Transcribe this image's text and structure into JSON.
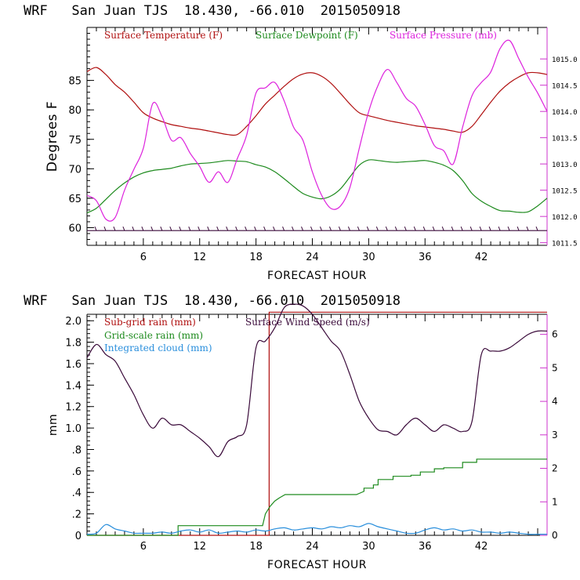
{
  "chart_data": [
    {
      "type": "line",
      "title": "WRF   San Juan TJS  18.430, -66.010  2015050918",
      "xlabel": "FORECAST HOUR",
      "ylabel": "Degrees F",
      "xlim": [
        0,
        49
      ],
      "x_ticks": [
        6,
        12,
        18,
        24,
        30,
        36,
        42
      ],
      "ylim": [
        57,
        94
      ],
      "y_ticks": [
        60,
        65,
        70,
        75,
        80,
        85
      ],
      "y2lim": [
        1011.45,
        1015.6
      ],
      "y2_ticks": [
        "1011.5",
        "1012.0",
        "1012.5",
        "1013.0",
        "1013.5",
        "1014.0",
        "1014.5",
        "1015.0"
      ],
      "grid": false,
      "legend": "top-left, inside",
      "series": [
        {
          "name": "Surface Temperature (F)",
          "color": "#b01010",
          "axis": "left",
          "x": [
            0,
            1,
            2,
            3,
            4,
            5,
            6,
            7,
            8,
            9,
            10,
            11,
            12,
            13,
            14,
            15,
            16,
            17,
            18,
            19,
            20,
            21,
            22,
            23,
            24,
            25,
            26,
            27,
            28,
            29,
            30,
            31,
            32,
            33,
            34,
            35,
            36,
            37,
            38,
            39,
            40,
            41,
            42,
            43,
            44,
            45,
            46,
            47,
            48,
            49
          ],
          "y": [
            86.5,
            87.2,
            86.0,
            84.3,
            83.0,
            81.3,
            79.5,
            78.6,
            78.0,
            77.5,
            77.2,
            76.9,
            76.7,
            76.4,
            76.1,
            75.8,
            75.8,
            77.2,
            79.0,
            81.0,
            82.5,
            84.0,
            85.3,
            86.1,
            86.3,
            85.7,
            84.5,
            82.8,
            81.0,
            79.5,
            79.0,
            78.6,
            78.2,
            77.9,
            77.6,
            77.3,
            77.1,
            76.9,
            76.7,
            76.4,
            76.2,
            77.2,
            79.2,
            81.3,
            83.2,
            84.6,
            85.6,
            86.3,
            86.3,
            86.0
          ]
        },
        {
          "name": "Surface Dewpoint (F)",
          "color": "#1d8a1d",
          "axis": "left",
          "x": [
            0,
            1,
            2,
            3,
            4,
            5,
            6,
            7,
            8,
            9,
            10,
            11,
            12,
            13,
            14,
            15,
            16,
            17,
            18,
            19,
            20,
            21,
            22,
            23,
            24,
            25,
            26,
            27,
            28,
            29,
            30,
            31,
            32,
            33,
            34,
            35,
            36,
            37,
            38,
            39,
            40,
            41,
            42,
            43,
            44,
            45,
            46,
            47,
            48,
            49
          ],
          "y": [
            62.5,
            63.3,
            64.8,
            66.3,
            67.6,
            68.6,
            69.3,
            69.7,
            69.9,
            70.1,
            70.5,
            70.8,
            70.9,
            71.0,
            71.2,
            71.4,
            71.3,
            71.2,
            70.7,
            70.3,
            69.5,
            68.3,
            67.0,
            65.8,
            65.2,
            64.9,
            65.4,
            66.6,
            68.6,
            70.6,
            71.5,
            71.4,
            71.2,
            71.1,
            71.2,
            71.3,
            71.4,
            71.1,
            70.6,
            69.7,
            68.0,
            65.8,
            64.5,
            63.6,
            62.9,
            62.8,
            62.6,
            62.7,
            63.7,
            65.0
          ]
        },
        {
          "name": "Surface Pressure (mb)",
          "color": "#dd22dd",
          "axis": "right",
          "x": [
            0,
            1,
            2,
            3,
            4,
            5,
            6,
            7,
            8,
            9,
            10,
            11,
            12,
            13,
            14,
            15,
            16,
            17,
            18,
            19,
            20,
            21,
            22,
            23,
            24,
            25,
            26,
            27,
            28,
            29,
            30,
            31,
            32,
            33,
            34,
            35,
            36,
            37,
            38,
            39,
            40,
            41,
            42,
            43,
            44,
            45,
            46,
            47,
            48,
            49
          ],
          "y": [
            1012.4,
            1012.3,
            1011.95,
            1011.98,
            1012.5,
            1012.9,
            1013.3,
            1014.15,
            1013.9,
            1013.45,
            1013.5,
            1013.2,
            1012.95,
            1012.65,
            1012.85,
            1012.65,
            1013.1,
            1013.55,
            1014.35,
            1014.45,
            1014.55,
            1014.2,
            1013.7,
            1013.45,
            1012.85,
            1012.4,
            1012.15,
            1012.2,
            1012.55,
            1013.3,
            1014.0,
            1014.5,
            1014.8,
            1014.55,
            1014.25,
            1014.1,
            1013.75,
            1013.35,
            1013.25,
            1013.0,
            1013.7,
            1014.3,
            1014.55,
            1014.75,
            1015.2,
            1015.35,
            1015.0,
            1014.65,
            1014.35,
            1014.0
          ]
        },
        {
          "name": "",
          "color": "#3a0a3a",
          "axis": "left",
          "x": [
            0,
            49
          ],
          "y": [
            59.5,
            59.5
          ]
        }
      ]
    },
    {
      "type": "line",
      "title": "WRF   San Juan TJS  18.430, -66.010  2015050918",
      "xlabel": "FORECAST HOUR",
      "ylabel": "mm",
      "xlim": [
        0,
        49
      ],
      "x_ticks": [
        6,
        12,
        18,
        24,
        30,
        36,
        42
      ],
      "ylim": [
        0,
        2.06
      ],
      "y_ticks": [
        0,
        0.2,
        0.4,
        0.6,
        0.8,
        1.0,
        1.2,
        1.4,
        1.6,
        1.8,
        2.0
      ],
      "y_tick_labels": [
        "0",
        ".2",
        ".4",
        ".6",
        ".8",
        "1.0",
        "1.2",
        "1.4",
        "1.6",
        "1.8",
        "2.0"
      ],
      "y2lim": [
        0,
        6.6
      ],
      "y2_ticks": [
        0,
        1,
        2,
        3,
        4,
        5,
        6
      ],
      "grid": false,
      "legend": "top-left, inside",
      "series": [
        {
          "name": "Sub-grid rain (mm)",
          "color": "#b01010",
          "axis": "left",
          "x": [
            0,
            19.4,
            19.4,
            49
          ],
          "y": [
            0,
            0,
            2.08,
            2.08
          ]
        },
        {
          "name": "Grid-scale rain (mm)",
          "color": "#1d8a1d",
          "axis": "left",
          "x": [
            0,
            9.7,
            9.7,
            18.7,
            19.0,
            19.5,
            20.0,
            20.5,
            21.1,
            28.7,
            29.5,
            29.5,
            30.5,
            30.5,
            31.0,
            31.0,
            32.6,
            32.6,
            34.5,
            34.5,
            35.5,
            35.5,
            37.0,
            37.0,
            38.0,
            38.0,
            40.0,
            40.0,
            41.5,
            41.5,
            49
          ],
          "y": [
            0,
            0,
            0.09,
            0.09,
            0.2,
            0.27,
            0.32,
            0.35,
            0.38,
            0.38,
            0.41,
            0.44,
            0.44,
            0.47,
            0.47,
            0.52,
            0.52,
            0.55,
            0.55,
            0.56,
            0.56,
            0.59,
            0.59,
            0.62,
            0.62,
            0.63,
            0.63,
            0.68,
            0.68,
            0.71,
            0.71
          ]
        },
        {
          "name": "Integrated cloud (mm)",
          "color": "#2a8fdc",
          "axis": "left",
          "x": [
            0,
            1,
            2,
            3,
            4,
            5,
            6,
            7,
            8,
            9,
            10,
            11,
            12,
            13,
            14,
            15,
            16,
            17,
            18,
            19,
            20,
            21,
            22,
            23,
            24,
            25,
            26,
            27,
            28,
            29,
            30,
            31,
            32,
            33,
            34,
            35,
            36,
            37,
            38,
            39,
            40,
            41,
            42,
            43,
            44,
            45,
            46,
            47,
            48,
            49
          ],
          "y": [
            0.01,
            0.02,
            0.1,
            0.06,
            0.04,
            0.02,
            0.02,
            0.02,
            0.03,
            0.02,
            0.04,
            0.05,
            0.03,
            0.05,
            0.02,
            0.03,
            0.04,
            0.03,
            0.05,
            0.04,
            0.06,
            0.07,
            0.05,
            0.06,
            0.07,
            0.06,
            0.08,
            0.07,
            0.09,
            0.08,
            0.11,
            0.08,
            0.06,
            0.04,
            0.02,
            0.02,
            0.05,
            0.07,
            0.05,
            0.06,
            0.04,
            0.05,
            0.03,
            0.03,
            0.02,
            0.03,
            0.02,
            0.01,
            0.01,
            0.01
          ]
        },
        {
          "name": "Surface Wind Speed (m/s)",
          "color": "#3a0a3a",
          "axis": "right",
          "x": [
            0,
            1,
            2,
            3,
            4,
            5,
            6,
            7,
            8,
            9,
            10,
            11,
            12,
            13,
            14,
            15,
            16,
            17,
            18,
            19,
            20,
            21,
            22,
            23,
            24,
            25,
            26,
            27,
            28,
            29,
            30,
            31,
            32,
            33,
            34,
            35,
            36,
            37,
            38,
            39,
            40,
            41,
            42,
            43,
            44,
            45,
            46,
            47,
            48,
            49
          ],
          "y": [
            5.3,
            5.7,
            5.4,
            5.2,
            4.7,
            4.2,
            3.6,
            3.2,
            3.5,
            3.3,
            3.3,
            3.1,
            2.9,
            2.65,
            2.35,
            2.8,
            2.95,
            3.3,
            5.6,
            5.8,
            6.2,
            6.8,
            6.9,
            6.85,
            6.6,
            6.2,
            5.8,
            5.5,
            4.8,
            4.0,
            3.5,
            3.15,
            3.1,
            3.0,
            3.3,
            3.5,
            3.3,
            3.1,
            3.3,
            3.2,
            3.1,
            3.4,
            5.4,
            5.5,
            5.5,
            5.6,
            5.8,
            6.0,
            6.1,
            6.1
          ]
        }
      ]
    }
  ]
}
